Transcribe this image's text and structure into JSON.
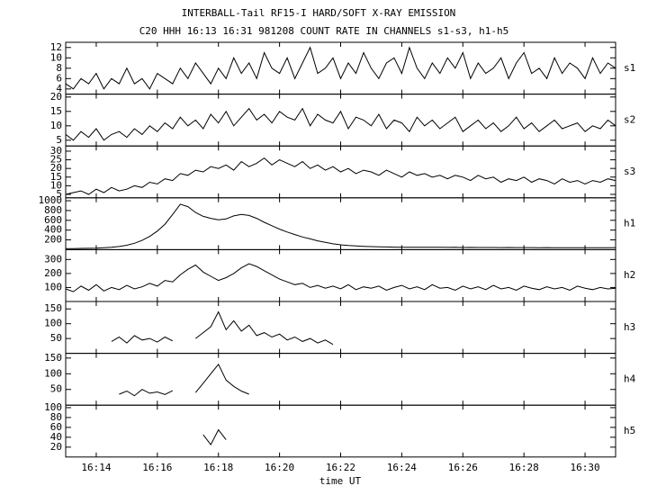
{
  "chart_data": {
    "type": "line",
    "title": "INTERBALL-Tail RF15-I HARD/SOFT X-RAY EMISSION",
    "subtitle": "C20 HHH 16:13 16:31 981208  COUNT RATE IN CHANNELS s1-s3, h1-h5",
    "xlabel": "time UT",
    "xlim": [
      973,
      991
    ],
    "xticks": [
      {
        "value": 974,
        "label": "16:14"
      },
      {
        "value": 976,
        "label": "16:16"
      },
      {
        "value": 978,
        "label": "16:18"
      },
      {
        "value": 980,
        "label": "16:20"
      },
      {
        "value": 982,
        "label": "16:22"
      },
      {
        "value": 984,
        "label": "16:24"
      },
      {
        "value": 986,
        "label": "16:26"
      },
      {
        "value": 988,
        "label": "16:28"
      },
      {
        "value": 990,
        "label": "16:30"
      }
    ],
    "x": [
      973,
      973.25,
      973.5,
      973.75,
      974,
      974.25,
      974.5,
      974.75,
      975,
      975.25,
      975.5,
      975.75,
      976,
      976.25,
      976.5,
      976.75,
      977,
      977.25,
      977.5,
      977.75,
      978,
      978.25,
      978.5,
      978.75,
      979,
      979.25,
      979.5,
      979.75,
      980,
      980.25,
      980.5,
      980.75,
      981,
      981.25,
      981.5,
      981.75,
      982,
      982.25,
      982.5,
      982.75,
      983,
      983.25,
      983.5,
      983.75,
      984,
      984.25,
      984.5,
      984.75,
      985,
      985.25,
      985.5,
      985.75,
      986,
      986.25,
      986.5,
      986.75,
      987,
      987.25,
      987.5,
      987.75,
      988,
      988.25,
      988.5,
      988.75,
      989,
      989.25,
      989.5,
      989.75,
      990,
      990.25,
      990.5,
      990.75,
      991
    ],
    "color": "#000000",
    "panels": [
      {
        "name": "s1",
        "ylim": [
          3,
          13
        ],
        "yticks": [
          4,
          6,
          8,
          10,
          12
        ],
        "values": [
          5,
          4,
          6,
          5,
          7,
          4,
          6,
          5,
          8,
          5,
          6,
          4,
          7,
          6,
          5,
          8,
          6,
          9,
          7,
          5,
          8,
          6,
          10,
          7,
          9,
          6,
          11,
          8,
          7,
          10,
          6,
          9,
          12,
          7,
          8,
          10,
          6,
          9,
          7,
          11,
          8,
          6,
          9,
          10,
          7,
          12,
          8,
          6,
          9,
          7,
          10,
          8,
          11,
          6,
          9,
          7,
          8,
          10,
          6,
          9,
          11,
          7,
          8,
          6,
          10,
          7,
          9,
          8,
          6,
          10,
          7,
          9,
          8
        ]
      },
      {
        "name": "s2",
        "ylim": [
          3,
          21
        ],
        "yticks": [
          5,
          10,
          15,
          20
        ],
        "values": [
          7,
          5,
          8,
          6,
          9,
          5,
          7,
          8,
          6,
          9,
          7,
          10,
          8,
          11,
          9,
          13,
          10,
          12,
          9,
          14,
          11,
          15,
          10,
          13,
          16,
          12,
          14,
          11,
          15,
          13,
          12,
          16,
          10,
          14,
          12,
          11,
          15,
          9,
          13,
          12,
          10,
          14,
          9,
          12,
          11,
          8,
          13,
          10,
          12,
          9,
          11,
          13,
          8,
          10,
          12,
          9,
          11,
          8,
          10,
          13,
          9,
          11,
          8,
          10,
          12,
          9,
          10,
          11,
          8,
          10,
          9,
          12,
          10
        ]
      },
      {
        "name": "s3",
        "ylim": [
          3,
          33
        ],
        "yticks": [
          5,
          10,
          15,
          20,
          25,
          30
        ],
        "values": [
          5,
          6,
          7,
          5,
          8,
          6,
          9,
          7,
          8,
          10,
          9,
          12,
          11,
          14,
          13,
          17,
          16,
          19,
          18,
          21,
          20,
          22,
          19,
          24,
          21,
          23,
          26,
          22,
          25,
          23,
          21,
          24,
          20,
          22,
          19,
          21,
          18,
          20,
          17,
          19,
          18,
          16,
          19,
          17,
          15,
          18,
          16,
          17,
          15,
          16,
          14,
          16,
          15,
          13,
          16,
          14,
          15,
          12,
          14,
          13,
          15,
          12,
          14,
          13,
          11,
          14,
          12,
          13,
          11,
          13,
          12,
          14,
          13
        ]
      },
      {
        "name": "h1",
        "ylim": [
          0,
          1060
        ],
        "yticks": [
          200,
          400,
          600,
          800,
          1000
        ],
        "values": [
          20,
          22,
          25,
          28,
          32,
          40,
          50,
          65,
          90,
          130,
          190,
          270,
          380,
          520,
          720,
          930,
          880,
          760,
          680,
          640,
          610,
          630,
          690,
          720,
          700,
          640,
          560,
          490,
          420,
          360,
          310,
          260,
          220,
          180,
          150,
          120,
          100,
          85,
          75,
          68,
          62,
          58,
          55,
          52,
          50,
          50,
          48,
          49,
          47,
          48,
          46,
          47,
          45,
          46,
          44,
          45,
          44,
          43,
          44,
          42,
          43,
          42,
          41,
          42,
          40,
          41,
          40,
          41,
          39,
          40,
          41,
          40,
          42
        ]
      },
      {
        "name": "h2",
        "ylim": [
          0,
          370
        ],
        "yticks": [
          100,
          200,
          300
        ],
        "values": [
          90,
          70,
          110,
          80,
          120,
          75,
          100,
          85,
          115,
          90,
          105,
          130,
          110,
          150,
          140,
          190,
          230,
          260,
          210,
          180,
          150,
          170,
          200,
          240,
          270,
          250,
          220,
          190,
          160,
          140,
          120,
          130,
          100,
          115,
          95,
          110,
          90,
          120,
          85,
          105,
          95,
          110,
          80,
          100,
          115,
          90,
          105,
          85,
          120,
          95,
          100,
          80,
          110,
          90,
          105,
          85,
          115,
          90,
          100,
          80,
          110,
          95,
          85,
          105,
          90,
          100,
          80,
          110,
          95,
          85,
          100,
          90,
          95
        ]
      },
      {
        "name": "h3",
        "ylim": [
          0,
          175
        ],
        "yticks": [
          50,
          100,
          150
        ],
        "values": [
          null,
          null,
          null,
          null,
          null,
          null,
          40,
          55,
          35,
          60,
          45,
          50,
          38,
          55,
          42,
          null,
          null,
          50,
          70,
          90,
          140,
          80,
          110,
          75,
          95,
          60,
          70,
          55,
          65,
          45,
          55,
          40,
          50,
          35,
          45,
          30,
          null,
          null,
          null,
          null,
          null,
          null,
          null,
          null,
          null,
          null,
          null,
          null,
          null,
          null,
          null,
          null,
          null,
          null,
          null,
          null,
          null,
          null,
          null,
          null,
          null,
          null,
          null,
          null,
          null,
          null,
          null,
          null,
          null,
          null,
          null,
          null,
          null
        ]
      },
      {
        "name": "h4",
        "ylim": [
          0,
          165
        ],
        "yticks": [
          50,
          100,
          150
        ],
        "values": [
          null,
          null,
          null,
          null,
          null,
          null,
          null,
          35,
          45,
          30,
          50,
          38,
          42,
          34,
          46,
          null,
          null,
          40,
          70,
          100,
          130,
          80,
          60,
          45,
          35,
          null,
          null,
          null,
          null,
          null,
          null,
          null,
          null,
          null,
          null,
          null,
          null,
          null,
          null,
          null,
          null,
          null,
          null,
          null,
          null,
          null,
          null,
          null,
          null,
          null,
          null,
          null,
          null,
          null,
          null,
          null,
          null,
          null,
          null,
          null,
          null,
          null,
          null,
          null,
          null,
          null,
          null,
          null,
          null,
          null,
          null,
          null,
          null
        ]
      },
      {
        "name": "h5",
        "ylim": [
          0,
          105
        ],
        "yticks": [
          20,
          40,
          60,
          80,
          100
        ],
        "values": [
          null,
          null,
          null,
          null,
          null,
          null,
          null,
          null,
          null,
          null,
          null,
          null,
          null,
          null,
          null,
          null,
          null,
          null,
          45,
          25,
          55,
          35,
          null,
          null,
          null,
          null,
          null,
          null,
          null,
          null,
          null,
          null,
          null,
          null,
          null,
          null,
          null,
          null,
          null,
          null,
          null,
          null,
          null,
          null,
          null,
          null,
          null,
          null,
          null,
          null,
          null,
          null,
          null,
          null,
          null,
          null,
          null,
          null,
          null,
          null,
          null,
          null,
          null,
          null,
          null,
          null,
          null,
          null,
          null,
          null,
          null,
          null,
          null
        ]
      }
    ]
  }
}
